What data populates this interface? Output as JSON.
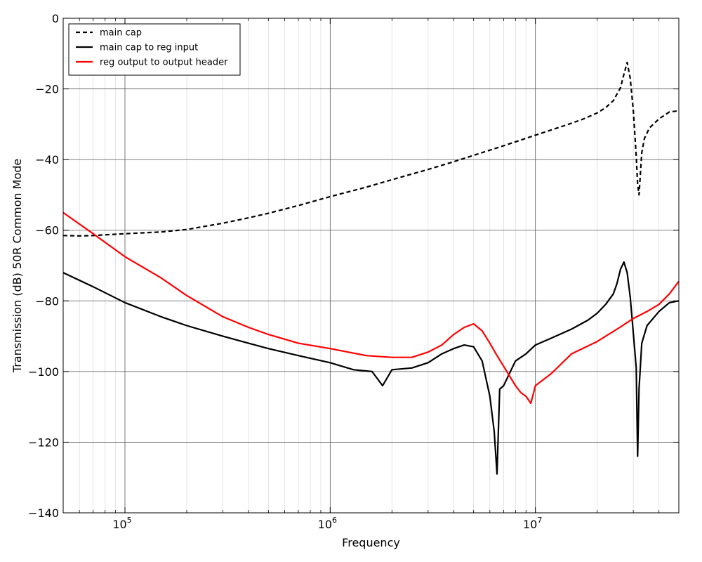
{
  "chart_data": {
    "type": "line",
    "title": "",
    "xlabel": "Frequency",
    "ylabel": "Transmission (dB) 50R Common Mode",
    "x_scale": "log",
    "xlim": [
      50000,
      50000000
    ],
    "ylim": [
      -140,
      0
    ],
    "grid": true,
    "legend_position": "top-left",
    "x_tick_labels": [
      {
        "value": 100000,
        "base": "10",
        "exp": "5"
      },
      {
        "value": 1000000,
        "base": "10",
        "exp": "6"
      },
      {
        "value": 10000000,
        "base": "10",
        "exp": "7"
      }
    ],
    "y_tick_labels": [
      {
        "value": 0,
        "label": "0"
      },
      {
        "value": -20,
        "label": "−20"
      },
      {
        "value": -40,
        "label": "−40"
      },
      {
        "value": -60,
        "label": "−60"
      },
      {
        "value": -80,
        "label": "−80"
      },
      {
        "value": -100,
        "label": "−100"
      },
      {
        "value": -120,
        "label": "−120"
      },
      {
        "value": -140,
        "label": "−140"
      }
    ],
    "series": [
      {
        "name": "main cap",
        "color": "#000000",
        "style": "dashed",
        "x": [
          50000,
          60000,
          70000,
          80000,
          100000,
          150000,
          200000,
          300000,
          400000,
          500000,
          700000,
          1000000,
          1500000,
          2000000,
          3000000,
          4000000,
          5000000,
          7000000,
          10000000,
          14000000,
          17000000,
          20000000,
          22000000,
          24000000,
          26000000,
          27000000,
          28000000,
          29000000,
          30000000,
          31000000,
          31500000,
          32000000,
          33000000,
          34000000,
          36000000,
          40000000,
          45000000,
          50000000
        ],
        "y": [
          -61.5,
          -61.6,
          -61.5,
          -61.3,
          -61,
          -60.5,
          -59.8,
          -58,
          -56.5,
          -55.2,
          -53,
          -50.5,
          -47.8,
          -45.7,
          -42.8,
          -40.6,
          -38.8,
          -36.1,
          -33.1,
          -30.3,
          -28.6,
          -26.8,
          -25.3,
          -23.3,
          -19.6,
          -15.8,
          -12.5,
          -17,
          -26,
          -39,
          -47,
          -50,
          -38,
          -34,
          -31,
          -28.5,
          -26.5,
          -26.2
        ]
      },
      {
        "name": "main cap to reg input",
        "color": "#000000",
        "style": "solid",
        "x": [
          50000,
          70000,
          100000,
          150000,
          200000,
          300000,
          400000,
          500000,
          700000,
          1000000,
          1300000,
          1600000,
          1800000,
          2000000,
          2500000,
          3000000,
          3500000,
          4000000,
          4500000,
          5000000,
          5500000,
          6000000,
          6300000,
          6500000,
          6700000,
          7000000,
          8000000,
          9000000,
          10000000,
          12000000,
          15000000,
          18000000,
          20000000,
          22000000,
          24000000,
          25000000,
          26000000,
          27000000,
          28000000,
          29000000,
          30000000,
          31000000,
          31500000,
          32000000,
          33000000,
          35000000,
          40000000,
          45000000,
          50000000
        ],
        "y": [
          -72,
          -76,
          -80.5,
          -84.5,
          -87,
          -90,
          -92,
          -93.5,
          -95.5,
          -97.5,
          -99.5,
          -100,
          -104,
          -99.5,
          -99,
          -97.5,
          -95,
          -93.5,
          -92.5,
          -93,
          -97,
          -107,
          -117,
          -129,
          -105,
          -104,
          -97,
          -95,
          -92.5,
          -90.5,
          -88,
          -85.5,
          -83.5,
          -81,
          -78,
          -75,
          -71,
          -69,
          -72,
          -79,
          -89,
          -99,
          -124,
          -105,
          -92,
          -87,
          -83,
          -80.5,
          -80
        ]
      },
      {
        "name": "reg output to output header",
        "color": "#ff0000",
        "style": "solid",
        "x": [
          50000,
          70000,
          100000,
          150000,
          200000,
          300000,
          400000,
          500000,
          700000,
          1000000,
          1500000,
          2000000,
          2500000,
          3000000,
          3500000,
          4000000,
          4500000,
          5000000,
          5500000,
          6000000,
          6500000,
          7000000,
          8000000,
          8500000,
          9000000,
          9500000,
          10000000,
          12000000,
          15000000,
          20000000,
          25000000,
          30000000,
          35000000,
          40000000,
          45000000,
          50000000
        ],
        "y": [
          -55,
          -61,
          -67.5,
          -73.5,
          -78.5,
          -84.5,
          -87.5,
          -89.5,
          -92,
          -93.5,
          -95.5,
          -96,
          -96,
          -94.5,
          -92.5,
          -89.5,
          -87.5,
          -86.5,
          -88.5,
          -92,
          -95.5,
          -98.5,
          -104,
          -106,
          -107,
          -109,
          -104,
          -100.5,
          -95,
          -91.5,
          -88,
          -85,
          -83,
          -81,
          -78,
          -74.5
        ]
      }
    ]
  }
}
